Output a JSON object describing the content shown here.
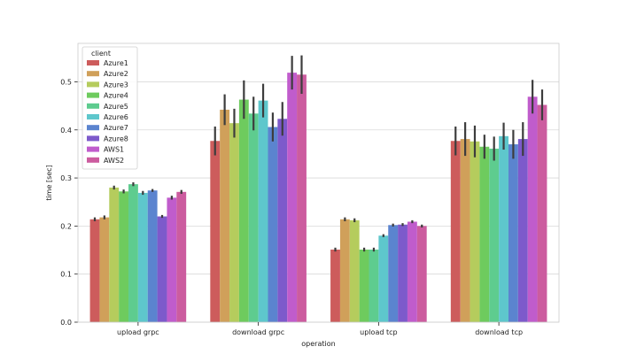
{
  "chart_data": {
    "type": "bar",
    "categories": [
      "upload grpc",
      "download grpc",
      "upload tcp",
      "download tcp"
    ],
    "xlabel": "operation",
    "ylabel": "time [sec]",
    "ylim": [
      0,
      0.58
    ],
    "yticks": [
      0.0,
      0.1,
      0.2,
      0.3,
      0.4,
      0.5
    ],
    "ytick_labels": [
      "0.0",
      "0.1",
      "0.2",
      "0.3",
      "0.4",
      "0.5"
    ],
    "grid": "horizontal",
    "legend_title": "client",
    "legend_position": "top-left",
    "series": [
      {
        "name": "Azure1",
        "color": "#cd5c5c",
        "values": [
          0.214,
          0.377,
          0.151,
          0.377
        ],
        "err": [
          0.004,
          0.03,
          0.004,
          0.03
        ]
      },
      {
        "name": "Azure2",
        "color": "#d0a05a",
        "values": [
          0.218,
          0.442,
          0.214,
          0.381
        ],
        "err": [
          0.004,
          0.032,
          0.004,
          0.035
        ]
      },
      {
        "name": "Azure3",
        "color": "#b5cc5d",
        "values": [
          0.28,
          0.414,
          0.212,
          0.376
        ],
        "err": [
          0.004,
          0.03,
          0.004,
          0.033
        ]
      },
      {
        "name": "Azure4",
        "color": "#6ecb5e",
        "values": [
          0.272,
          0.463,
          0.151,
          0.365
        ],
        "err": [
          0.004,
          0.04,
          0.004,
          0.025
        ]
      },
      {
        "name": "Azure5",
        "color": "#5ecc8f",
        "values": [
          0.287,
          0.434,
          0.151,
          0.361
        ],
        "err": [
          0.004,
          0.035,
          0.004,
          0.025
        ]
      },
      {
        "name": "Azure6",
        "color": "#5ec7cc",
        "values": [
          0.269,
          0.461,
          0.18,
          0.387
        ],
        "err": [
          0.004,
          0.035,
          0.003,
          0.028
        ]
      },
      {
        "name": "Azure7",
        "color": "#5b84cf",
        "values": [
          0.274,
          0.406,
          0.202,
          0.37
        ],
        "err": [
          0.003,
          0.03,
          0.003,
          0.03
        ]
      },
      {
        "name": "Azure8",
        "color": "#7d5acb",
        "values": [
          0.22,
          0.423,
          0.203,
          0.381
        ],
        "err": [
          0.003,
          0.035,
          0.003,
          0.035
        ]
      },
      {
        "name": "AWS1",
        "color": "#c05ccc",
        "values": [
          0.259,
          0.519,
          0.209,
          0.469
        ],
        "err": [
          0.004,
          0.035,
          0.003,
          0.035
        ]
      },
      {
        "name": "AWS2",
        "color": "#cc5c9f",
        "values": [
          0.271,
          0.515,
          0.2,
          0.452
        ],
        "err": [
          0.004,
          0.04,
          0.003,
          0.032
        ]
      }
    ]
  }
}
